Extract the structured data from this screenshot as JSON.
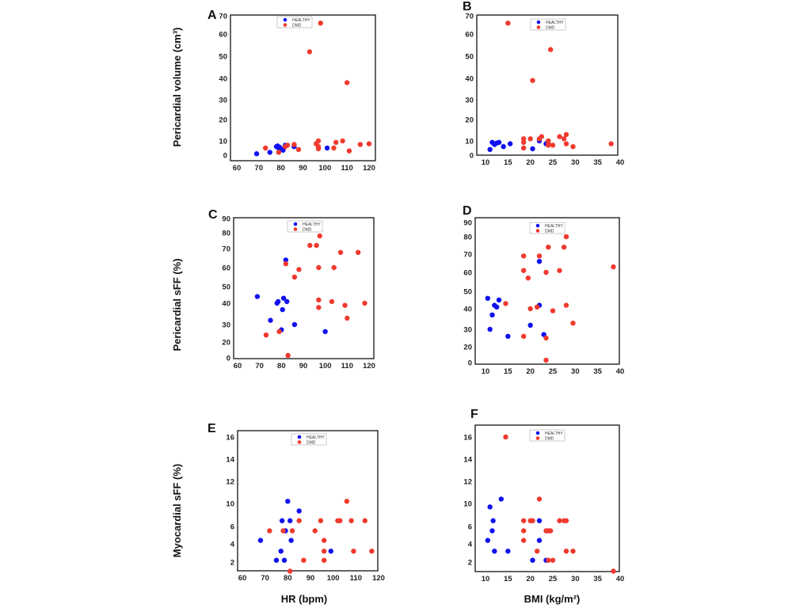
{
  "colors": {
    "HEALTHY": "#1010f0",
    "DMD": "#f03a2e"
  },
  "ylabels": [
    "Pericardial volume (cm³)",
    "Pericardial sFF (%)",
    "Myocardial sFF (%)"
  ],
  "xlabels": [
    "HR (bpm)",
    "BMI (kg/m²)"
  ],
  "chart_data": [
    {
      "panel": "A",
      "type": "scatter",
      "xticks": [
        60,
        70,
        80,
        90,
        100,
        110,
        120
      ],
      "yticks": [
        0,
        10,
        20,
        30,
        40,
        50,
        60,
        70
      ],
      "legend": [
        "HEALTHY",
        "DMD"
      ],
      "legend_position": "top-center",
      "series": [
        {
          "name": "HEALTHY",
          "points": [
            [
              69,
              1
            ],
            [
              75,
              2
            ],
            [
              78,
              6
            ],
            [
              78.5,
              6.5
            ],
            [
              79,
              5
            ],
            [
              79.5,
              5.5
            ],
            [
              80,
              4.5
            ],
            [
              81,
              4
            ],
            [
              81,
              3.5
            ],
            [
              82,
              7
            ],
            [
              86,
              6
            ],
            [
              101,
              5
            ]
          ]
        },
        {
          "name": "DMD",
          "points": [
            [
              73,
              5
            ],
            [
              79,
              2
            ],
            [
              82,
              6
            ],
            [
              83,
              7
            ],
            [
              86,
              7.5
            ],
            [
              88,
              4
            ],
            [
              93,
              52
            ],
            [
              96,
              8
            ],
            [
              97,
              10
            ],
            [
              97,
              6
            ],
            [
              97,
              4.5
            ],
            [
              98,
              66
            ],
            [
              104,
              5
            ],
            [
              105,
              9
            ],
            [
              108,
              10
            ],
            [
              110,
              38
            ],
            [
              111,
              3
            ],
            [
              116,
              7.5
            ],
            [
              120,
              8
            ]
          ]
        }
      ]
    },
    {
      "panel": "B",
      "type": "scatter",
      "xticks": [
        10,
        15,
        20,
        25,
        30,
        35,
        40
      ],
      "yticks": [
        0,
        10,
        20,
        30,
        40,
        50,
        60,
        70
      ],
      "legend": [
        "HEALTHY",
        "DMD"
      ],
      "legend_position": "top-center",
      "series": [
        {
          "name": "HEALTHY",
          "points": [
            [
              11,
              4
            ],
            [
              11.5,
              9
            ],
            [
              12,
              7.5
            ],
            [
              12.5,
              8.5
            ],
            [
              13,
              9
            ],
            [
              14,
              6
            ],
            [
              15.5,
              8
            ],
            [
              20.5,
              4.5
            ],
            [
              22,
              10
            ],
            [
              23.5,
              8
            ]
          ]
        },
        {
          "name": "DMD",
          "points": [
            [
              15,
              66
            ],
            [
              18.5,
              11
            ],
            [
              18.5,
              9
            ],
            [
              18.5,
              5
            ],
            [
              20,
              11
            ],
            [
              20.5,
              39
            ],
            [
              22,
              11
            ],
            [
              22.5,
              12
            ],
            [
              24,
              10
            ],
            [
              24,
              8
            ],
            [
              24,
              7
            ],
            [
              24.5,
              53
            ],
            [
              25,
              7
            ],
            [
              26.5,
              12
            ],
            [
              27.5,
              11
            ],
            [
              28,
              13
            ],
            [
              28,
              8
            ],
            [
              29.5,
              6
            ],
            [
              38,
              8
            ]
          ]
        }
      ]
    },
    {
      "panel": "C",
      "type": "scatter",
      "xticks": [
        60,
        70,
        80,
        90,
        100,
        110,
        120
      ],
      "yticks": [
        0,
        20,
        30,
        40,
        50,
        60,
        70,
        80,
        90
      ],
      "legend": [
        "HEALTHY",
        "DMD"
      ],
      "legend_position": "top-center",
      "series": [
        {
          "name": "HEALTHY",
          "points": [
            [
              69,
              44
            ],
            [
              75,
              32
            ],
            [
              78,
              40
            ],
            [
              78.5,
              41
            ],
            [
              80,
              27
            ],
            [
              80.5,
              37
            ],
            [
              81,
              43
            ],
            [
              82,
              64
            ],
            [
              82.5,
              41
            ],
            [
              86,
              30
            ],
            [
              100,
              26
            ]
          ]
        },
        {
          "name": "DMD",
          "points": [
            [
              73,
              24
            ],
            [
              79,
              26
            ],
            [
              82,
              62
            ],
            [
              83,
              3
            ],
            [
              86,
              55
            ],
            [
              88,
              59
            ],
            [
              93,
              72
            ],
            [
              96,
              72
            ],
            [
              97,
              60
            ],
            [
              97,
              42
            ],
            [
              97,
              38
            ],
            [
              97.5,
              78
            ],
            [
              103,
              41
            ],
            [
              104,
              60
            ],
            [
              107,
              68
            ],
            [
              109,
              39
            ],
            [
              110,
              33
            ],
            [
              115,
              68
            ],
            [
              118,
              40
            ]
          ]
        }
      ]
    },
    {
      "panel": "D",
      "type": "scatter",
      "xticks": [
        10,
        15,
        20,
        25,
        30,
        35,
        40
      ],
      "yticks": [
        0,
        20,
        30,
        40,
        50,
        60,
        70,
        80,
        90
      ],
      "legend": [
        "HEALTHY",
        "DMD"
      ],
      "legend_position": "top-center",
      "series": [
        {
          "name": "HEALTHY",
          "points": [
            [
              10.5,
              46
            ],
            [
              11,
              30
            ],
            [
              11.5,
              37
            ],
            [
              12,
              42
            ],
            [
              12.5,
              41
            ],
            [
              13,
              45
            ],
            [
              15,
              26
            ],
            [
              20,
              32
            ],
            [
              22,
              66
            ],
            [
              22,
              42
            ],
            [
              23,
              27
            ]
          ]
        },
        {
          "name": "DMD",
          "points": [
            [
              14.5,
              43
            ],
            [
              18.5,
              69
            ],
            [
              18.5,
              61
            ],
            [
              18.5,
              26
            ],
            [
              19.5,
              57
            ],
            [
              20,
              40
            ],
            [
              21.5,
              41
            ],
            [
              22,
              69
            ],
            [
              23.5,
              60
            ],
            [
              23.5,
              25
            ],
            [
              23.5,
              3
            ],
            [
              24,
              74
            ],
            [
              25,
              39
            ],
            [
              26.5,
              61
            ],
            [
              27.5,
              74
            ],
            [
              28,
              42
            ],
            [
              28,
              80
            ],
            [
              29.5,
              33
            ],
            [
              38.5,
              63
            ]
          ]
        }
      ]
    },
    {
      "panel": "E",
      "type": "scatter",
      "xticks": [
        60,
        70,
        80,
        90,
        100,
        110,
        120
      ],
      "yticks": [
        2,
        4,
        6,
        10,
        12,
        14,
        16
      ],
      "legend": [
        "HEALTHY",
        "DMD"
      ],
      "legend_position": "top-center",
      "series": [
        {
          "name": "HEALTHY",
          "points": [
            [
              68,
              4.4
            ],
            [
              75,
              2.2
            ],
            [
              77,
              3.2
            ],
            [
              77.5,
              7
            ],
            [
              78.5,
              2.2
            ],
            [
              79,
              5.5
            ],
            [
              80,
              10.2
            ],
            [
              81,
              7
            ],
            [
              81.5,
              4.4
            ],
            [
              85,
              8.7
            ],
            [
              99,
              3.2
            ]
          ]
        },
        {
          "name": "DMD",
          "points": [
            [
              72,
              5.5
            ],
            [
              78,
              5.5
            ],
            [
              81,
              1
            ],
            [
              82,
              5.5
            ],
            [
              85,
              7
            ],
            [
              87,
              2.2
            ],
            [
              92,
              5.5
            ],
            [
              94.5,
              7
            ],
            [
              96,
              4.4
            ],
            [
              96,
              3.2
            ],
            [
              96,
              2.2
            ],
            [
              102,
              7
            ],
            [
              103,
              7
            ],
            [
              106,
              10.2
            ],
            [
              108,
              7
            ],
            [
              109,
              3.2
            ],
            [
              114,
              7
            ],
            [
              117,
              3.2
            ]
          ]
        }
      ]
    },
    {
      "panel": "F",
      "type": "scatter",
      "xticks": [
        10,
        15,
        20,
        25,
        30,
        35,
        40
      ],
      "yticks": [
        2,
        4,
        6,
        10,
        12,
        14,
        16
      ],
      "legend": [
        "HEALTHY",
        "DMD"
      ],
      "legend_position": "top-center",
      "series": [
        {
          "name": "HEALTHY",
          "points": [
            [
              10.5,
              4.4
            ],
            [
              11,
              9.4
            ],
            [
              11.5,
              5.5
            ],
            [
              11.7,
              7
            ],
            [
              12,
              3.2
            ],
            [
              13.5,
              10.4
            ],
            [
              15,
              3.2
            ],
            [
              20.5,
              2.2
            ],
            [
              22,
              7
            ],
            [
              22,
              4.4
            ],
            [
              23.5,
              2.2
            ]
          ]
        },
        {
          "name": "DMD",
          "points": [
            [
              14.5,
              16
            ],
            [
              18.5,
              7
            ],
            [
              18.5,
              5.5
            ],
            [
              18.5,
              4.4
            ],
            [
              20,
              7
            ],
            [
              20.5,
              7
            ],
            [
              21.5,
              3.2
            ],
            [
              22,
              10.4
            ],
            [
              23.5,
              5.5
            ],
            [
              24,
              5.5
            ],
            [
              24,
              2.2
            ],
            [
              24.5,
              5.5
            ],
            [
              25,
              2.2
            ],
            [
              26.5,
              7
            ],
            [
              27.5,
              7
            ],
            [
              28,
              7
            ],
            [
              28,
              3.2
            ],
            [
              29.5,
              3.2
            ],
            [
              38.5,
              1
            ]
          ]
        }
      ]
    }
  ]
}
